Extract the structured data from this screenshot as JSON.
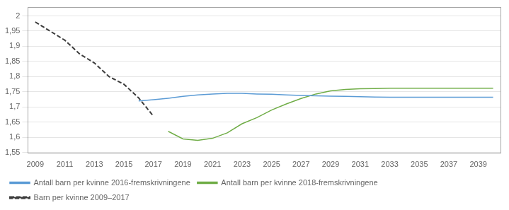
{
  "chart_data": {
    "type": "line",
    "xlim": [
      2008.5,
      2040.5
    ],
    "xticks": [
      2009,
      2011,
      2013,
      2015,
      2017,
      2019,
      2021,
      2023,
      2025,
      2027,
      2029,
      2031,
      2033,
      2035,
      2037,
      2039
    ],
    "ylim": [
      1.55,
      2.03
    ],
    "yticks": [
      {
        "value": 1.55,
        "label": "1,55"
      },
      {
        "value": 1.6,
        "label": "1,6"
      },
      {
        "value": 1.65,
        "label": "1,65"
      },
      {
        "value": 1.7,
        "label": "1,7"
      },
      {
        "value": 1.75,
        "label": "1,75"
      },
      {
        "value": 1.8,
        "label": "1,8"
      },
      {
        "value": 1.85,
        "label": "1,85"
      },
      {
        "value": 1.9,
        "label": "1,9"
      },
      {
        "value": 1.95,
        "label": "1,95"
      },
      2
    ],
    "grid": "y",
    "legend": "bottom",
    "series": [
      {
        "name": "Antall barn per kvinne 2016-fremskrivningene",
        "color": "#5b9bd5",
        "line_style": "solid",
        "x": [
          2016,
          2017,
          2018,
          2019,
          2020,
          2021,
          2022,
          2023,
          2024,
          2025,
          2026,
          2027,
          2028,
          2029,
          2030,
          2031,
          2032,
          2033,
          2034,
          2035,
          2036,
          2037,
          2038,
          2039,
          2040
        ],
        "values": [
          1.72,
          1.724,
          1.729,
          1.735,
          1.74,
          1.743,
          1.745,
          1.745,
          1.743,
          1.742,
          1.74,
          1.738,
          1.737,
          1.736,
          1.735,
          1.734,
          1.733,
          1.732,
          1.732,
          1.732,
          1.732,
          1.732,
          1.732,
          1.732,
          1.732
        ]
      },
      {
        "name": "Antall barn per kvinne 2018-fremskrivningene",
        "color": "#70ad47",
        "line_style": "solid",
        "x": [
          2018,
          2019,
          2020,
          2021,
          2022,
          2023,
          2024,
          2025,
          2026,
          2027,
          2028,
          2029,
          2030,
          2031,
          2032,
          2033,
          2034,
          2035,
          2036,
          2037,
          2038,
          2039,
          2040
        ],
        "values": [
          1.62,
          1.595,
          1.59,
          1.597,
          1.615,
          1.645,
          1.665,
          1.69,
          1.71,
          1.728,
          1.743,
          1.753,
          1.758,
          1.76,
          1.761,
          1.762,
          1.762,
          1.762,
          1.762,
          1.762,
          1.762,
          1.762,
          1.762
        ]
      },
      {
        "name": "Barn per kvinne 2009–2017",
        "color": "#3d3d3d",
        "line_style": "dashed",
        "x": [
          2009,
          2010,
          2011,
          2012,
          2013,
          2014,
          2015,
          2016,
          2017
        ],
        "values": [
          1.98,
          1.95,
          1.92,
          1.875,
          1.845,
          1.8,
          1.775,
          1.73,
          1.67
        ]
      }
    ]
  }
}
